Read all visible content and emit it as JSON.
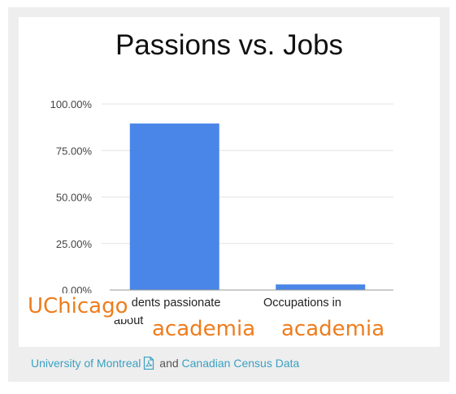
{
  "chart_data": {
    "type": "bar",
    "title": "Passions vs. Jobs",
    "categories": [
      "Students passionate about",
      "Occupations in"
    ],
    "values": [
      89.5,
      3.0
    ],
    "ylim": [
      0,
      100
    ],
    "y_ticks": [
      "100.00%",
      "75.00%",
      "50.00%",
      "25.00%",
      "0.00%"
    ],
    "y_tick_values": [
      100,
      75,
      50,
      25,
      0
    ],
    "bar_color": "#4a86e8",
    "grid": true,
    "legend": "none",
    "xlabel": "",
    "ylabel": ""
  },
  "annotations": {
    "left_label": "UChicago",
    "academia_left": "academia",
    "academia_right": "academia",
    "color": "#ee7d1d"
  },
  "credits": {
    "source1": "University of Montreal",
    "connector": "and",
    "source2": "Canadian Census Data",
    "icon": "pdf-icon",
    "link_color": "#3aa0c2"
  }
}
